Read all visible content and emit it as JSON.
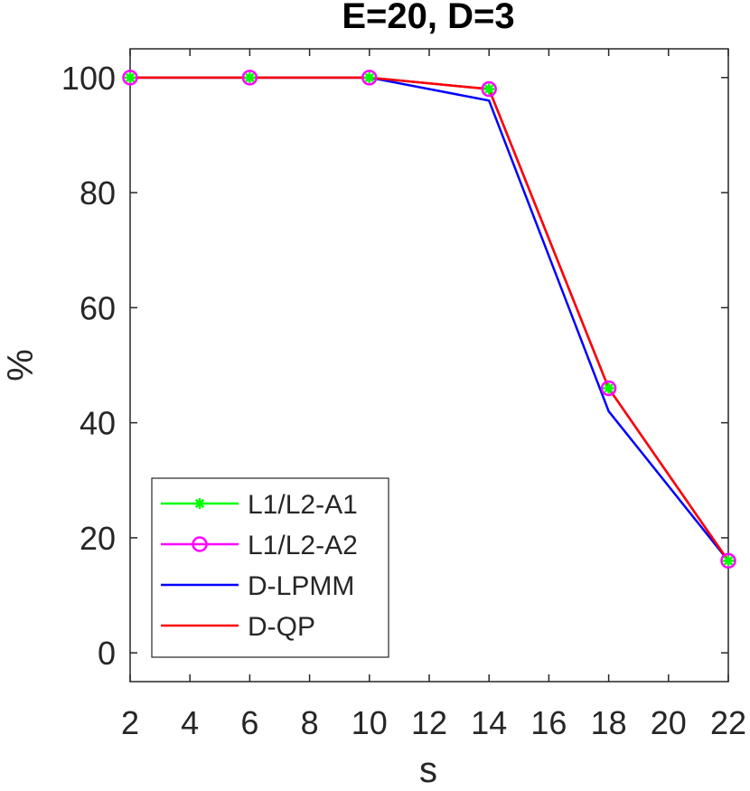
{
  "chart_data": {
    "type": "line",
    "title": "E=20, D=3",
    "xlabel": "s",
    "ylabel": "%",
    "xlim": [
      2,
      22
    ],
    "ylim": [
      -5,
      105
    ],
    "xticks": [
      2,
      4,
      6,
      8,
      10,
      12,
      14,
      16,
      18,
      20,
      22
    ],
    "yticks": [
      0,
      20,
      40,
      60,
      80,
      100
    ],
    "grid": false,
    "legend_position": "bottom-left",
    "x": [
      2,
      6,
      10,
      14,
      18,
      22
    ],
    "series": [
      {
        "name": "L1/L2-A1",
        "values": [
          100,
          100,
          100,
          98,
          46,
          16
        ],
        "color": "#00ff00",
        "marker": "asterisk"
      },
      {
        "name": "L1/L2-A2",
        "values": [
          100,
          100,
          100,
          98,
          46,
          16
        ],
        "color": "#ff00ff",
        "marker": "circle"
      },
      {
        "name": "D-LPMM",
        "values": [
          100,
          100,
          100,
          96,
          42,
          16
        ],
        "color": "#0000ff",
        "marker": "none"
      },
      {
        "name": "D-QP",
        "values": [
          100,
          100,
          100,
          98,
          46,
          16
        ],
        "color": "#ff0000",
        "marker": "none"
      }
    ]
  }
}
